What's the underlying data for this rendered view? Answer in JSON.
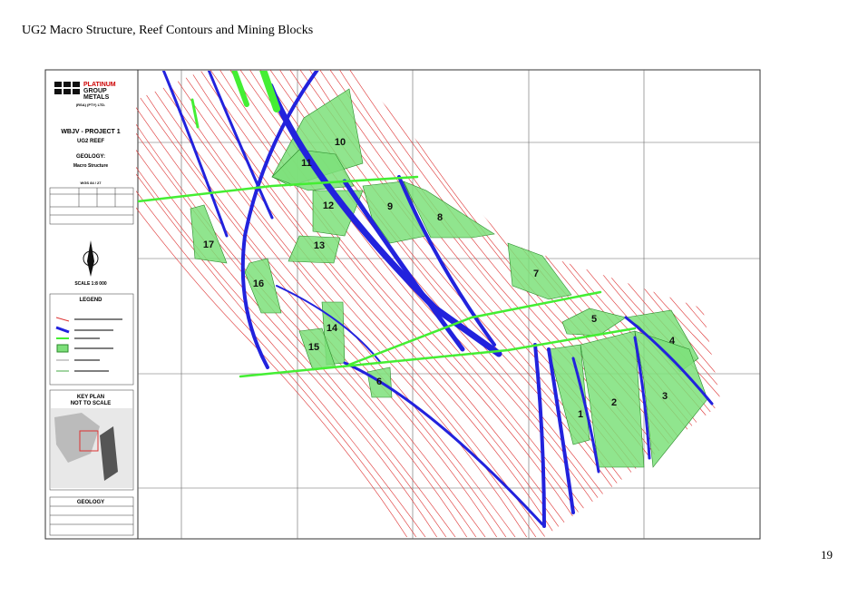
{
  "header": {
    "title": "UG2 Macro Structure, Reef Contours and Mining Blocks"
  },
  "map": {
    "company": [
      "PLATINUM",
      "GROUP",
      "METALS"
    ],
    "company_sub": "(RSA) (PTY) LTD.",
    "project": "WBJV - PROJECT 1",
    "reef": "UG2 REEF",
    "geology_heading": "GEOLOGY:",
    "geology_type": "Macro Structure",
    "datum": "WGS 84 / 27",
    "scale": "SCALE 1:8 000",
    "legend_title": "LEGEND",
    "key_plan": [
      "KEY PLAN",
      "NOT TO SCALE"
    ],
    "table_title": "GEOLOGY",
    "blocks": [
      "1",
      "2",
      "3",
      "4",
      "5",
      "6",
      "7",
      "8",
      "9",
      "10",
      "11",
      "12",
      "13",
      "14",
      "15",
      "16",
      "17"
    ]
  },
  "footer": {
    "page_number": "19"
  }
}
